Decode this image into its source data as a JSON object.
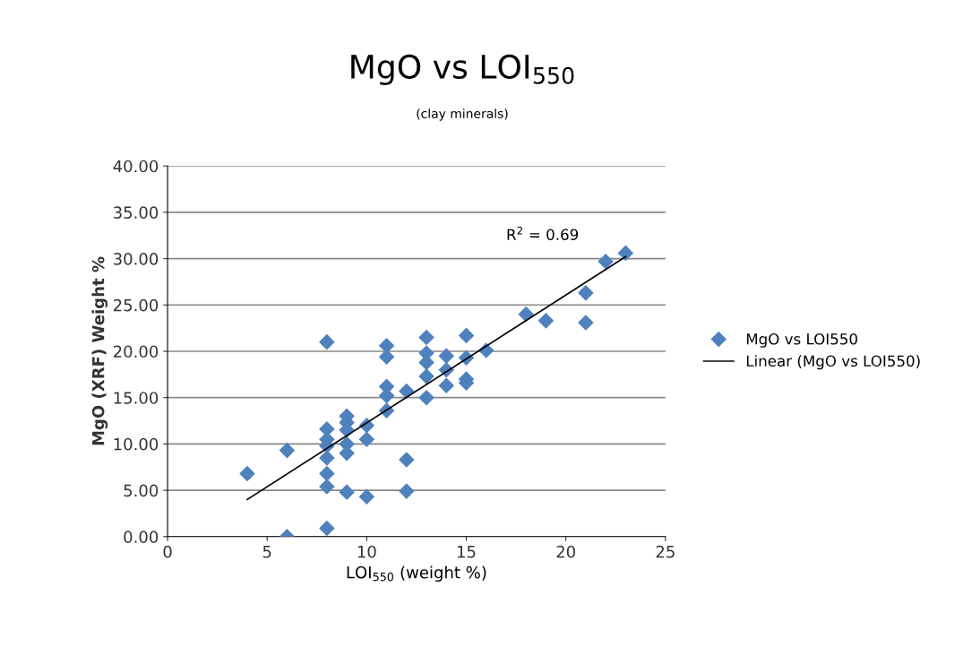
{
  "chart_data": {
    "type": "scatter",
    "title": "MgO vs LOI$_{550}$",
    "subtitle": "(clay minerals)",
    "xlabel": "LOI$_{550}$ (weight %)",
    "ylabel": "MgO (XRF) Weight %",
    "annotations": [
      "R$^{2}$ = 0.69"
    ],
    "series": [
      {
        "name": "MgO vs LOI550",
        "color": "#4f81bd",
        "marker": "diamond",
        "x": [
          4,
          6,
          6,
          8,
          8,
          8,
          8,
          8,
          8,
          8,
          8,
          9,
          9,
          9,
          9,
          9,
          9,
          10,
          10,
          10,
          11,
          11,
          11,
          11,
          11,
          12,
          12,
          12,
          13,
          13,
          13,
          13,
          13,
          14,
          14,
          14,
          15,
          15,
          15,
          15,
          16,
          18,
          19,
          21,
          21,
          22,
          23
        ],
        "values": [
          6.8,
          0,
          9.3,
          21.0,
          11.6,
          10.5,
          9.8,
          8.5,
          6.8,
          5.4,
          0.9,
          13.0,
          12.3,
          11.5,
          10.0,
          9.0,
          4.8,
          12.0,
          10.5,
          4.3,
          20.6,
          19.4,
          16.2,
          15.2,
          13.6,
          15.7,
          8.3,
          4.9,
          21.5,
          19.8,
          18.8,
          17.3,
          15.0,
          19.5,
          18.0,
          16.3,
          21.7,
          19.3,
          17.0,
          16.6,
          20.1,
          24.0,
          23.3,
          26.3,
          23.1,
          29.7,
          30.6
        ]
      },
      {
        "name": "Linear (MgO vs LOI550)",
        "type": "line",
        "color": "#000000",
        "marker": "none",
        "line_style": "solid",
        "x": [
          4,
          23
        ],
        "values": [
          4.0,
          30.2
        ]
      }
    ],
    "xlim": [
      0,
      25
    ],
    "xticks": [
      0,
      5,
      10,
      15,
      20,
      25
    ],
    "ylim": [
      0,
      40
    ],
    "yticks": [
      {
        "value": 0,
        "label": "0.00"
      },
      {
        "value": 5,
        "label": "5.00"
      },
      {
        "value": 10,
        "label": "10.00"
      },
      {
        "value": 15,
        "label": "15.00"
      },
      {
        "value": 20,
        "label": "20.00"
      },
      {
        "value": 25,
        "label": "25.00"
      },
      {
        "value": 30,
        "label": "30.00"
      },
      {
        "value": 35,
        "label": "35.00"
      },
      {
        "value": 40,
        "label": "40.00"
      }
    ],
    "grid": "y",
    "legend": "right"
  }
}
